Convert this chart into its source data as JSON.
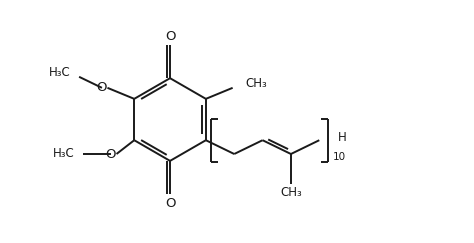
{
  "bg_color": "#ffffff",
  "line_color": "#1a1a1a",
  "line_width": 1.4,
  "font_size": 8.5,
  "fig_width": 4.74,
  "fig_height": 2.43,
  "dpi": 100,
  "xlim": [
    0,
    12
  ],
  "ylim": [
    0,
    6
  ]
}
